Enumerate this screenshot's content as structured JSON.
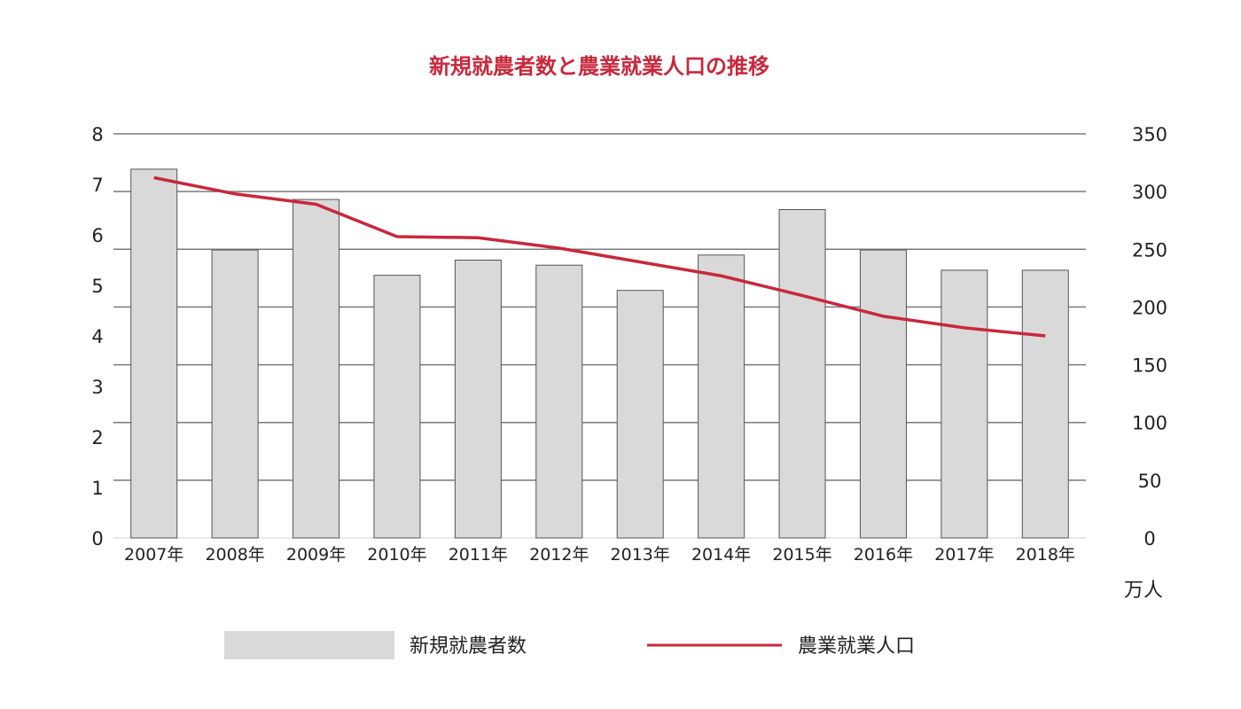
{
  "chart_data": {
    "type": "bar",
    "title": "新規就農者数と農業就業人口の推移",
    "categories": [
      "2007年",
      "2008年",
      "2009年",
      "2010年",
      "2011年",
      "2012年",
      "2013年",
      "2014年",
      "2015年",
      "2016年",
      "2017年",
      "2018年"
    ],
    "series": [
      {
        "name": "新規就農者数",
        "type": "bar",
        "axis": "left",
        "color": "#d9d9d9",
        "values": [
          7.3,
          5.7,
          6.7,
          5.2,
          5.5,
          5.4,
          4.9,
          5.6,
          6.5,
          5.7,
          5.3,
          5.3
        ]
      },
      {
        "name": "農業就業人口",
        "type": "line",
        "axis": "right",
        "color": "#c8283c",
        "values": [
          312,
          298,
          289,
          261,
          260,
          251,
          239,
          227,
          210,
          192,
          182,
          175
        ]
      }
    ],
    "y_left": {
      "ticks": [
        "0",
        "1",
        "2",
        "3",
        "4",
        "5",
        "6",
        "7",
        "8"
      ],
      "min": 0,
      "max": 8
    },
    "y_right": {
      "ticks": [
        "0",
        "50",
        "100",
        "150",
        "200",
        "250",
        "300",
        "350"
      ],
      "min": 0,
      "max": 350,
      "unit": "万人"
    },
    "legend": "bottom",
    "grid": true
  }
}
